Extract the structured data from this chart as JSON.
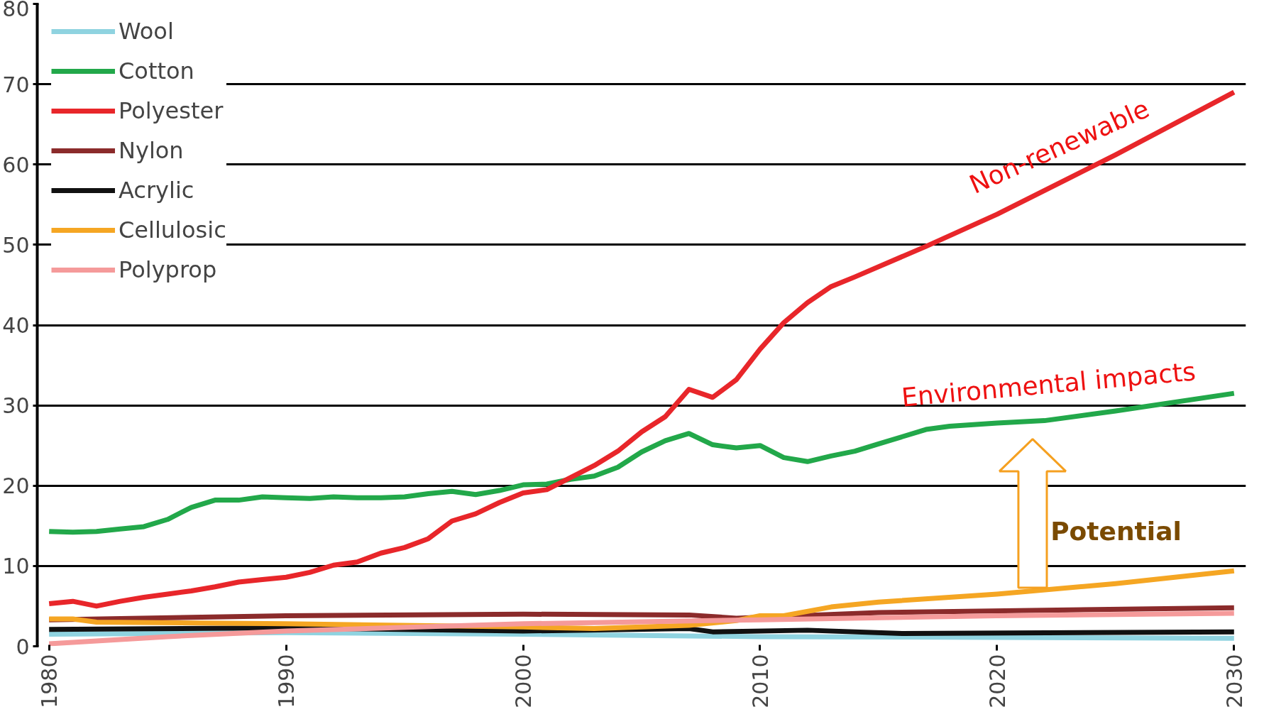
{
  "chart_data": {
    "type": "line",
    "xlim": [
      1979.5,
      2030.5
    ],
    "xticks": [
      1980,
      1990,
      2000,
      2010,
      2020,
      2030
    ],
    "ylim": [
      0,
      80
    ],
    "yticks": [
      0,
      10,
      20,
      30,
      40,
      50,
      60,
      70,
      80
    ],
    "grid": "y",
    "legend": "top left",
    "series": [
      {
        "name": "Wool",
        "color": "#8fd3e0",
        "x": [
          1980,
          1990,
          2000,
          2010,
          2030
        ],
        "values": [
          1.5,
          1.7,
          1.5,
          1.2,
          1.0
        ]
      },
      {
        "name": "Cotton",
        "color": "#22a84a",
        "x": [
          1980,
          1981,
          1982,
          1983,
          1984,
          1985,
          1986,
          1987,
          1988,
          1989,
          1990,
          1991,
          1992,
          1993,
          1994,
          1995,
          1996,
          1997,
          1998,
          1999,
          2000,
          2001,
          2002,
          2003,
          2004,
          2005,
          2006,
          2007,
          2008,
          2009,
          2010,
          2011,
          2012,
          2013,
          2014,
          2015,
          2016,
          2017,
          2018,
          2019,
          2020,
          2022,
          2025,
          2030
        ],
        "values": [
          14.3,
          14.2,
          14.3,
          14.6,
          14.9,
          15.8,
          17.3,
          18.2,
          18.2,
          18.6,
          18.5,
          18.4,
          18.6,
          18.5,
          18.5,
          18.6,
          19.0,
          19.3,
          18.9,
          19.4,
          20.1,
          20.2,
          20.8,
          21.2,
          22.3,
          24.2,
          25.6,
          26.5,
          25.1,
          24.7,
          25.0,
          23.5,
          23.0,
          23.7,
          24.3,
          25.2,
          26.1,
          27.0,
          27.4,
          27.6,
          27.8,
          28.1,
          29.3,
          31.5
        ]
      },
      {
        "name": "Polyester",
        "color": "#e8262a",
        "x": [
          1980,
          1981,
          1982,
          1983,
          1984,
          1985,
          1986,
          1987,
          1988,
          1989,
          1990,
          1991,
          1992,
          1993,
          1994,
          1995,
          1996,
          1997,
          1998,
          1999,
          2000,
          2001,
          2002,
          2003,
          2004,
          2005,
          2006,
          2007,
          2008,
          2009,
          2010,
          2011,
          2012,
          2013,
          2014,
          2017,
          2020,
          2025,
          2030
        ],
        "values": [
          5.3,
          5.6,
          5.0,
          5.6,
          6.1,
          6.5,
          6.9,
          7.4,
          8.0,
          8.3,
          8.6,
          9.2,
          10.1,
          10.5,
          11.6,
          12.3,
          13.4,
          15.6,
          16.5,
          17.9,
          19.1,
          19.5,
          21.0,
          22.5,
          24.3,
          26.7,
          28.6,
          32.0,
          31.0,
          33.2,
          37.0,
          40.3,
          42.8,
          44.8,
          46.0,
          49.8,
          53.8,
          61.2,
          69.0
        ]
      },
      {
        "name": "Nylon",
        "color": "#8b2b2b",
        "x": [
          1980,
          1990,
          2000,
          2007,
          2009,
          2015,
          2030
        ],
        "values": [
          3.3,
          3.8,
          4.0,
          3.9,
          3.5,
          4.2,
          4.8
        ]
      },
      {
        "name": "Acrylic",
        "color": "#111111",
        "x": [
          1980,
          1990,
          2000,
          2007,
          2008,
          2012,
          2016,
          2030
        ],
        "values": [
          2.1,
          2.3,
          1.9,
          2.2,
          1.8,
          2.0,
          1.6,
          1.8
        ]
      },
      {
        "name": "Cellulosic",
        "color": "#f5a623",
        "x": [
          1980,
          1981,
          1982,
          1990,
          2000,
          2003,
          2007,
          2009,
          2010,
          2011,
          2013,
          2015,
          2020,
          2025,
          2030
        ],
        "values": [
          3.4,
          3.4,
          3.0,
          2.8,
          2.4,
          2.2,
          2.6,
          3.2,
          3.8,
          3.8,
          4.9,
          5.5,
          6.5,
          7.8,
          9.4
        ]
      },
      {
        "name": "Polyprop",
        "color": "#f59a9a",
        "x": [
          1980,
          1985,
          1990,
          2000,
          2010,
          2020,
          2030
        ],
        "values": [
          0.3,
          1.2,
          1.9,
          2.8,
          3.3,
          3.8,
          4.1
        ]
      }
    ],
    "annotations": [
      "Non-renewable",
      "Environmental impacts",
      "Potential"
    ]
  }
}
